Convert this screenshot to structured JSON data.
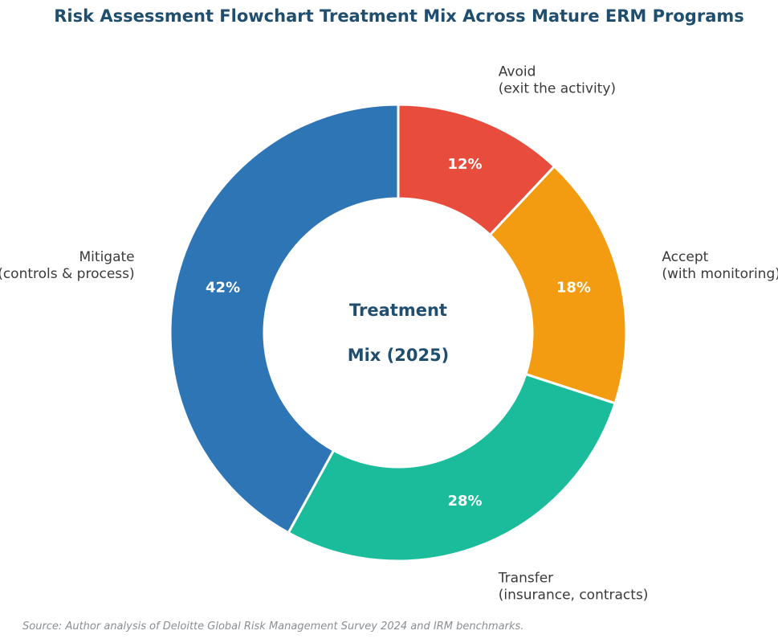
{
  "chart_data": {
    "type": "pie",
    "variant": "donut",
    "title": "Risk Assessment Flowchart Treatment Mix Across Mature ERM Programs",
    "center_label": [
      "Treatment",
      "Mix (2025)"
    ],
    "start_angle": "12 o'clock",
    "direction": "clockwise",
    "slices": [
      {
        "label": [
          "Avoid",
          "(exit the activity)"
        ],
        "value": 12,
        "value_label": "12%",
        "color": "#e74c3c"
      },
      {
        "label": [
          "Accept",
          "(with monitoring)"
        ],
        "value": 18,
        "value_label": "18%",
        "color": "#f39c12"
      },
      {
        "label": [
          "Transfer",
          "(insurance, contracts)"
        ],
        "value": 28,
        "value_label": "28%",
        "color": "#1abc9c"
      },
      {
        "label": [
          "Mitigate",
          "(controls & process)"
        ],
        "value": 42,
        "value_label": "42%",
        "color": "#2e75b6"
      }
    ],
    "legend": "none"
  },
  "source_note": "Source: Author analysis of Deloitte Global Risk Management Survey 2024 and IRM benchmarks.",
  "colors": {
    "title": "#1f4e6e",
    "center_label": "#1f4e6e",
    "outer_label": "#3a3a3a",
    "inner_label": "#ffffff",
    "source_note": "#8a8f93",
    "separator": "#ffffff"
  }
}
